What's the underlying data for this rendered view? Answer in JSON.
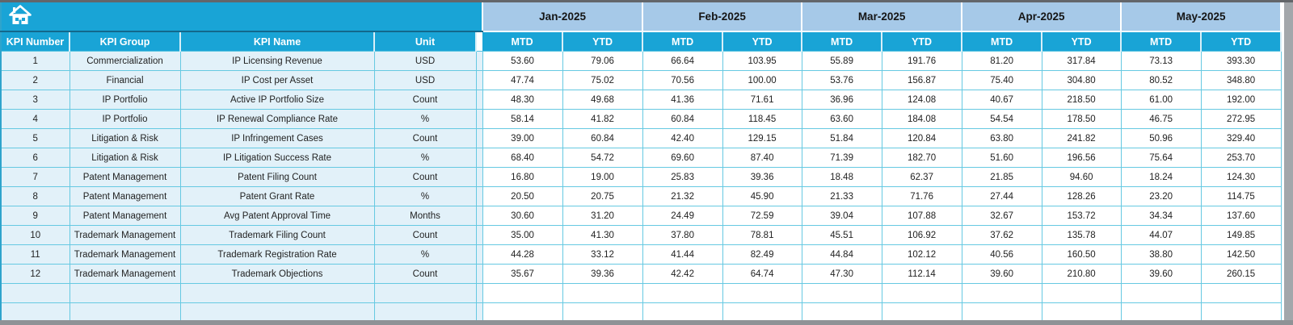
{
  "banner": {
    "home_icon": "home"
  },
  "table": {
    "column_headers": [
      "KPI Number",
      "KPI Group",
      "KPI Name",
      "Unit"
    ],
    "month_headers": [
      "Jan-2025",
      "Feb-2025",
      "Mar-2025",
      "Apr-2025",
      "May-2025"
    ],
    "sub_headers": [
      "MTD",
      "YTD"
    ],
    "rows": [
      {
        "number": "1",
        "group": "Commercialization",
        "name": "IP Licensing Revenue",
        "unit": "USD",
        "values": [
          "53.60",
          "79.06",
          "66.64",
          "103.95",
          "55.89",
          "191.76",
          "81.20",
          "317.84",
          "73.13",
          "393.30"
        ]
      },
      {
        "number": "2",
        "group": "Financial",
        "name": "IP Cost per Asset",
        "unit": "USD",
        "values": [
          "47.74",
          "75.02",
          "70.56",
          "100.00",
          "53.76",
          "156.87",
          "75.40",
          "304.80",
          "80.52",
          "348.80"
        ]
      },
      {
        "number": "3",
        "group": "IP Portfolio",
        "name": "Active IP Portfolio Size",
        "unit": "Count",
        "values": [
          "48.30",
          "49.68",
          "41.36",
          "71.61",
          "36.96",
          "124.08",
          "40.67",
          "218.50",
          "61.00",
          "192.00"
        ]
      },
      {
        "number": "4",
        "group": "IP Portfolio",
        "name": "IP Renewal Compliance Rate",
        "unit": "%",
        "values": [
          "58.14",
          "41.82",
          "60.84",
          "118.45",
          "63.60",
          "184.08",
          "54.54",
          "178.50",
          "46.75",
          "272.95"
        ]
      },
      {
        "number": "5",
        "group": "Litigation & Risk",
        "name": "IP Infringement Cases",
        "unit": "Count",
        "values": [
          "39.00",
          "60.84",
          "42.40",
          "129.15",
          "51.84",
          "120.84",
          "63.80",
          "241.82",
          "50.96",
          "329.40"
        ]
      },
      {
        "number": "6",
        "group": "Litigation & Risk",
        "name": "IP Litigation Success Rate",
        "unit": "%",
        "values": [
          "68.40",
          "54.72",
          "69.60",
          "87.40",
          "71.39",
          "182.70",
          "51.60",
          "196.56",
          "75.64",
          "253.70"
        ]
      },
      {
        "number": "7",
        "group": "Patent Management",
        "name": "Patent Filing Count",
        "unit": "Count",
        "values": [
          "16.80",
          "19.00",
          "25.83",
          "39.36",
          "18.48",
          "62.37",
          "21.85",
          "94.60",
          "18.24",
          "124.30"
        ]
      },
      {
        "number": "8",
        "group": "Patent Management",
        "name": "Patent Grant Rate",
        "unit": "%",
        "values": [
          "20.50",
          "20.75",
          "21.32",
          "45.90",
          "21.33",
          "71.76",
          "27.44",
          "128.26",
          "23.20",
          "114.75"
        ]
      },
      {
        "number": "9",
        "group": "Patent Management",
        "name": "Avg Patent Approval Time",
        "unit": "Months",
        "values": [
          "30.60",
          "31.20",
          "24.49",
          "72.59",
          "39.04",
          "107.88",
          "32.67",
          "153.72",
          "34.34",
          "137.60"
        ]
      },
      {
        "number": "10",
        "group": "Trademark Management",
        "name": "Trademark Filing Count",
        "unit": "Count",
        "values": [
          "35.00",
          "41.30",
          "37.80",
          "78.81",
          "45.51",
          "106.92",
          "37.62",
          "135.78",
          "44.07",
          "149.85"
        ]
      },
      {
        "number": "11",
        "group": "Trademark Management",
        "name": "Trademark Registration Rate",
        "unit": "%",
        "values": [
          "44.28",
          "33.12",
          "41.44",
          "82.49",
          "44.84",
          "102.12",
          "40.56",
          "160.50",
          "38.80",
          "142.50"
        ]
      },
      {
        "number": "12",
        "group": "Trademark Management",
        "name": "Trademark Objections",
        "unit": "Count",
        "values": [
          "35.67",
          "39.36",
          "42.42",
          "64.74",
          "47.30",
          "112.14",
          "39.60",
          "210.80",
          "39.60",
          "260.15"
        ]
      }
    ],
    "empty_rows": 2
  },
  "colors": {
    "header_teal": "#19a4d6",
    "month_band_blue": "#a6c9e8",
    "row_light_blue": "#e2f1f9",
    "grid_teal": "#66c9e2",
    "banner_divider": "#13688c",
    "header_text": "#ffffff"
  }
}
